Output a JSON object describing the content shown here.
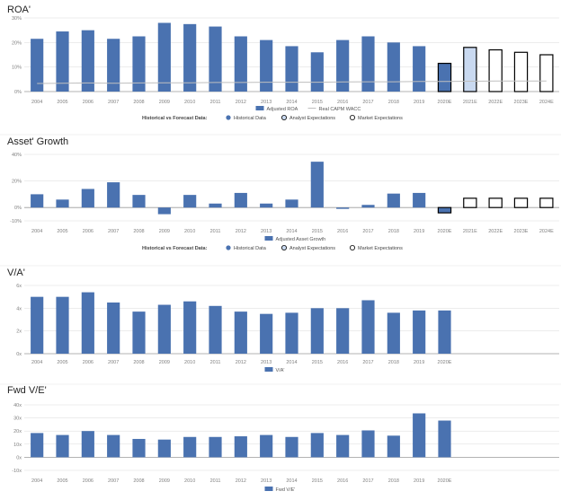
{
  "colors": {
    "historical": "#4A72B0",
    "historical_edge": "#2F4F80",
    "analyst_fill": "#C9D9F0",
    "axis_text": "#7f7f7f",
    "grid": "#d9d9d9",
    "wacc": "#bfbfbf"
  },
  "chart_data": [
    {
      "type": "bar",
      "title": "ROA'",
      "categories": [
        "2004",
        "2005",
        "2006",
        "2007",
        "2008",
        "2009",
        "2010",
        "2011",
        "2012",
        "2013",
        "2014",
        "2015",
        "2016",
        "2017",
        "2018",
        "2019",
        "2020E",
        "2021E",
        "2022E",
        "2023E",
        "2024E"
      ],
      "ylim": [
        0,
        30
      ],
      "yticks": [
        "0%",
        "10%",
        "20%",
        "30%"
      ],
      "yticks_values": [
        0,
        10,
        20,
        30
      ],
      "series": [
        {
          "name": "Adjusted ROA",
          "values": [
            21.5,
            24.5,
            25,
            21.5,
            22.5,
            28,
            27.5,
            26.5,
            22.5,
            21,
            18.5,
            16,
            21,
            22.5,
            20,
            18.5,
            11.5,
            18,
            17,
            16,
            15
          ]
        },
        {
          "name": "Real CAPM WACC",
          "type": "line",
          "values": [
            3.3,
            3.4,
            3.5,
            3.4,
            3.5,
            3.6,
            3.6,
            3.7,
            3.7,
            3.8,
            3.8,
            3.8,
            3.9,
            4.0,
            4.0,
            4.1,
            4.1,
            4.2,
            4.3,
            4.3,
            4.3
          ]
        }
      ],
      "bar_style": [
        "historical",
        "historical",
        "historical",
        "historical",
        "historical",
        "historical",
        "historical",
        "historical",
        "historical",
        "historical",
        "historical",
        "historical",
        "historical",
        "historical",
        "historical",
        "historical",
        "analyst",
        "analyst",
        "market",
        "market",
        "market"
      ],
      "legend": [
        {
          "label": "Adjusted ROA",
          "marker": "bar"
        },
        {
          "label": "Real CAPM WACC",
          "marker": "line"
        }
      ],
      "key_heading": "Historical vs Forecast Data:",
      "key": [
        {
          "label": "Historical Data",
          "marker": "filled"
        },
        {
          "label": "Analyst Expectations",
          "marker": "light"
        },
        {
          "label": "Market Expectations",
          "marker": "open"
        }
      ]
    },
    {
      "type": "bar",
      "title": "Asset' Growth",
      "categories": [
        "2004",
        "2005",
        "2006",
        "2007",
        "2008",
        "2009",
        "2010",
        "2011",
        "2012",
        "2013",
        "2014",
        "2015",
        "2016",
        "2017",
        "2018",
        "2019",
        "2020E",
        "2021E",
        "2022E",
        "2023E",
        "2024E"
      ],
      "ylim": [
        -10,
        40
      ],
      "yticks": [
        "-10%",
        "0%",
        "20%",
        "40%"
      ],
      "yticks_values": [
        -10,
        0,
        20,
        40
      ],
      "series": [
        {
          "name": "Adjusted Asset Growth",
          "values": [
            10,
            6,
            14,
            19,
            9.5,
            -5,
            9.5,
            3,
            11,
            3,
            6,
            34.5,
            -1,
            2,
            10.5,
            11,
            -4,
            7,
            7,
            7,
            7
          ]
        }
      ],
      "bar_style": [
        "historical",
        "historical",
        "historical",
        "historical",
        "historical",
        "historical",
        "historical",
        "historical",
        "historical",
        "historical",
        "historical",
        "historical",
        "historical",
        "historical",
        "historical",
        "historical",
        "analyst",
        "market",
        "market",
        "market",
        "market"
      ],
      "legend": [
        {
          "label": "Adjusted Asset Growth",
          "marker": "bar"
        }
      ],
      "key_heading": "Historical vs Forecast Data:",
      "key": [
        {
          "label": "Historical Data",
          "marker": "filled"
        },
        {
          "label": "Analyst Expectations",
          "marker": "light"
        },
        {
          "label": "Market Expectations",
          "marker": "open"
        }
      ]
    },
    {
      "type": "bar",
      "title": "V/A'",
      "categories": [
        "2004",
        "2005",
        "2006",
        "2007",
        "2008",
        "2009",
        "2010",
        "2011",
        "2012",
        "2013",
        "2014",
        "2015",
        "2016",
        "2017",
        "2018",
        "2019",
        "2020E",
        "",
        "",
        "",
        ""
      ],
      "ylim": [
        0,
        6
      ],
      "yticks": [
        "0x",
        "2x",
        "4x",
        "6x"
      ],
      "yticks_values": [
        0,
        2,
        4,
        6
      ],
      "series": [
        {
          "name": "V/A'",
          "values": [
            5.0,
            5.0,
            5.4,
            4.5,
            3.7,
            4.3,
            4.6,
            4.2,
            3.7,
            3.5,
            3.6,
            4.0,
            4.0,
            4.7,
            3.6,
            3.8,
            3.8,
            null,
            null,
            null,
            null
          ]
        }
      ],
      "legend": [
        {
          "label": "V/A'",
          "marker": "bar"
        }
      ]
    },
    {
      "type": "bar",
      "title": "Fwd V/E'",
      "categories": [
        "2004",
        "2005",
        "2006",
        "2007",
        "2008",
        "2009",
        "2010",
        "2011",
        "2012",
        "2013",
        "2014",
        "2015",
        "2016",
        "2017",
        "2018",
        "2019",
        "2020E",
        "",
        "",
        "",
        ""
      ],
      "ylim": [
        -10,
        40
      ],
      "yticks": [
        "-10x",
        "0x",
        "10x",
        "20x",
        "30x",
        "40x"
      ],
      "yticks_values": [
        -10,
        0,
        10,
        20,
        30,
        40
      ],
      "series": [
        {
          "name": "Fwd V/E'",
          "values": [
            18.5,
            17,
            20,
            17,
            14,
            13.5,
            15.5,
            15.5,
            16,
            17,
            15.5,
            18.5,
            17,
            20.5,
            16.5,
            33.5,
            28,
            null,
            null,
            null,
            null
          ]
        }
      ],
      "legend": [
        {
          "label": "Fwd V/E'",
          "marker": "bar"
        }
      ]
    }
  ]
}
